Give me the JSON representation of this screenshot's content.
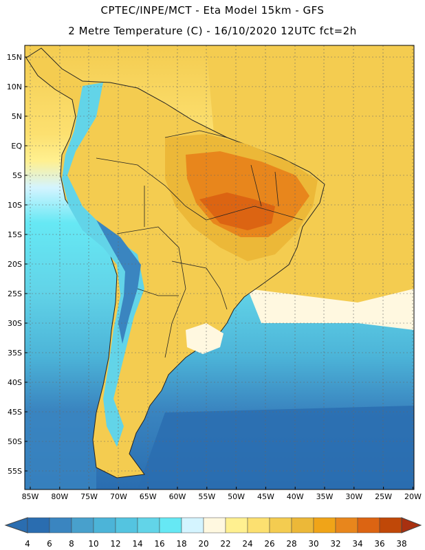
{
  "header": {
    "title_line1": "CPTEC/INPE/MCT -  Eta Model 15km - GFS",
    "title_line2": "2 Metre Temperature (C) - 16/10/2020 12UTC fct=2h"
  },
  "map": {
    "region": "South America",
    "lat_labels": [
      "15N",
      "10N",
      "5N",
      "EQ",
      "5S",
      "10S",
      "15S",
      "20S",
      "25S",
      "30S",
      "35S",
      "40S",
      "45S",
      "50S",
      "55S"
    ],
    "lon_labels": [
      "85W",
      "80W",
      "75W",
      "70W",
      "65W",
      "60W",
      "55W",
      "50W",
      "45W",
      "40W",
      "35W",
      "30W",
      "25W",
      "20W"
    ]
  },
  "colorbar": {
    "unit": "C",
    "labels": [
      "4",
      "6",
      "8",
      "10",
      "12",
      "14",
      "16",
      "18",
      "20",
      "22",
      "24",
      "26",
      "28",
      "30",
      "32",
      "34",
      "36",
      "38"
    ],
    "colors": [
      "#2a6db0",
      "#3a85c0",
      "#48a0cc",
      "#4cb4d8",
      "#54c4e0",
      "#62d4e8",
      "#66e8f4",
      "#d4f4ff",
      "#fff8e0",
      "#fff090",
      "#fce070",
      "#f4cc50",
      "#ecb838",
      "#f0a418",
      "#e8861c",
      "#dc6412",
      "#c04808",
      "#a83010"
    ]
  }
}
